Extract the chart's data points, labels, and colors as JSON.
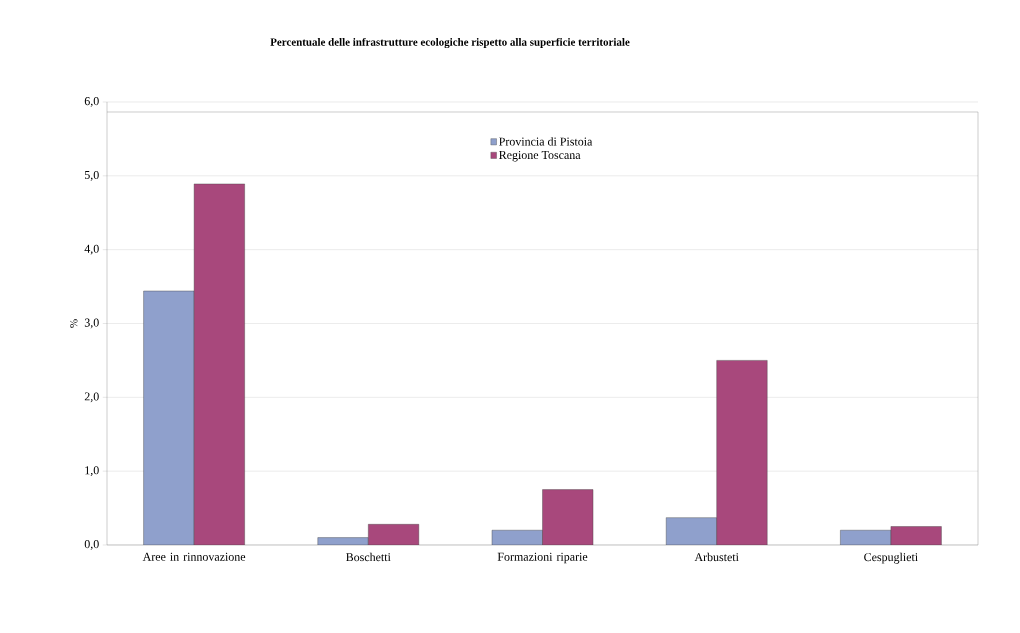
{
  "chart_data": {
    "type": "bar",
    "title": "Percentuale delle infrastrutture ecologiche rispetto alla superficie territoriale",
    "ylabel": "%",
    "categories": [
      "Aree in rinnovazione",
      "Boschetti",
      "Formazioni riparie",
      "Arbusteti",
      "Cespuglieti"
    ],
    "series": [
      {
        "name": "Provincia di Pistoia",
        "color": "#8fa0cc",
        "values": [
          3.44,
          0.1,
          0.2,
          0.37,
          0.2
        ]
      },
      {
        "name": "Regione Toscana",
        "color": "#a8487c",
        "values": [
          4.89,
          0.28,
          0.75,
          2.5,
          0.25
        ]
      }
    ],
    "ylim": [
      0,
      6
    ],
    "yticks": [
      {
        "value": 0,
        "label": "0,0"
      },
      {
        "value": 1,
        "label": "1,0"
      },
      {
        "value": 2,
        "label": "2,0"
      },
      {
        "value": 3,
        "label": "3,0"
      },
      {
        "value": 4,
        "label": "4,0"
      },
      {
        "value": 5,
        "label": "5,0"
      },
      {
        "value": 6,
        "label": "6,0"
      }
    ],
    "grid": "y",
    "legend": "top"
  }
}
